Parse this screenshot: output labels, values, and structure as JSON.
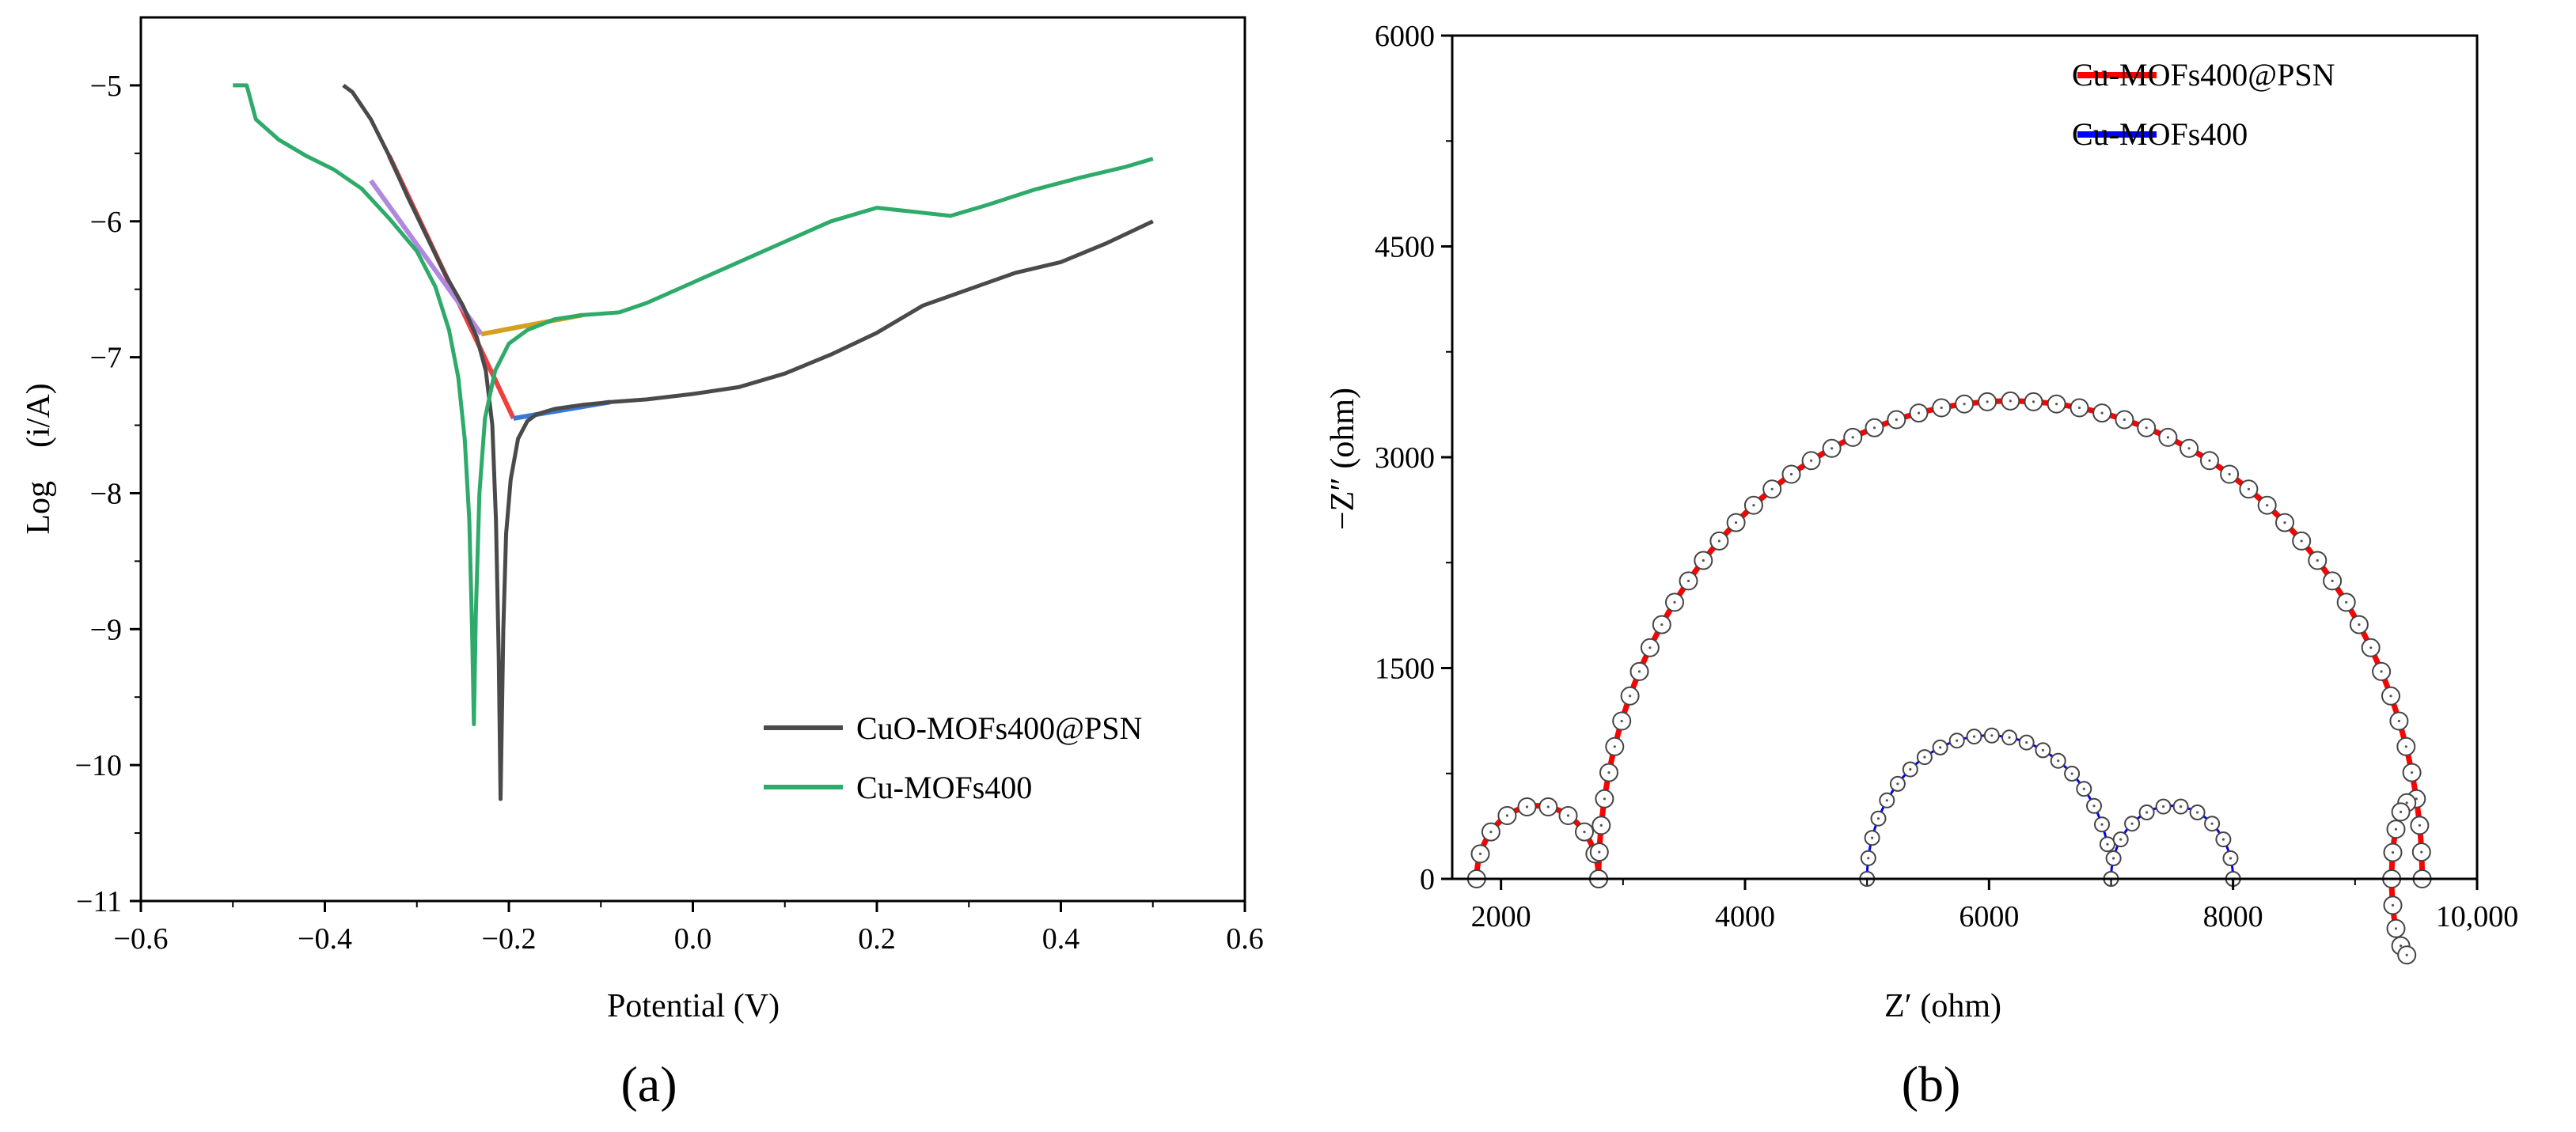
{
  "chart_data": [
    {
      "type": "line",
      "panel_label": "(a)",
      "xlabel": "Potential (V)",
      "ylabel": "Log　(i/A)",
      "xlim": [
        -0.6,
        0.6
      ],
      "ylim": [
        -11,
        -4.5
      ],
      "xticks": [
        -0.6,
        -0.4,
        -0.2,
        0.0,
        0.2,
        0.4,
        0.6
      ],
      "xtick_labels": [
        "−0.6",
        "−0.4",
        "−0.2",
        "0.0",
        "0.2",
        "0.4",
        "0.6"
      ],
      "yticks": [
        -5,
        -6,
        -7,
        -8,
        -9,
        -10,
        -11
      ],
      "ytick_labels": [
        "−5",
        "−6",
        "−7",
        "−8",
        "−9",
        "−10",
        "−11"
      ],
      "legend_position": "bottom-right",
      "series": [
        {
          "name": "CuO-MOFs400@PSN",
          "color": "#4a4a4a",
          "points": [
            [
              -0.38,
              -5.0
            ],
            [
              -0.37,
              -5.05
            ],
            [
              -0.35,
              -5.25
            ],
            [
              -0.33,
              -5.52
            ],
            [
              -0.31,
              -5.82
            ],
            [
              -0.29,
              -6.1
            ],
            [
              -0.27,
              -6.38
            ],
            [
              -0.25,
              -6.62
            ],
            [
              -0.235,
              -6.85
            ],
            [
              -0.225,
              -7.1
            ],
            [
              -0.218,
              -7.5
            ],
            [
              -0.214,
              -8.2
            ],
            [
              -0.211,
              -9.2
            ],
            [
              -0.209,
              -10.25
            ],
            [
              -0.206,
              -9.0
            ],
            [
              -0.203,
              -8.3
            ],
            [
              -0.198,
              -7.9
            ],
            [
              -0.19,
              -7.6
            ],
            [
              -0.18,
              -7.47
            ],
            [
              -0.17,
              -7.42
            ],
            [
              -0.15,
              -7.38
            ],
            [
              -0.12,
              -7.35
            ],
            [
              -0.09,
              -7.33
            ],
            [
              -0.05,
              -7.31
            ],
            [
              0.0,
              -7.27
            ],
            [
              0.05,
              -7.22
            ],
            [
              0.1,
              -7.12
            ],
            [
              0.15,
              -6.98
            ],
            [
              0.2,
              -6.82
            ],
            [
              0.25,
              -6.62
            ],
            [
              0.3,
              -6.5
            ],
            [
              0.35,
              -6.38
            ],
            [
              0.4,
              -6.3
            ],
            [
              0.45,
              -6.16
            ],
            [
              0.5,
              -6.0
            ]
          ]
        },
        {
          "name": "Cu-MOFs400",
          "color": "#2eaa6a",
          "points": [
            [
              -0.5,
              -5.0
            ],
            [
              -0.485,
              -5.0
            ],
            [
              -0.475,
              -5.25
            ],
            [
              -0.45,
              -5.4
            ],
            [
              -0.42,
              -5.52
            ],
            [
              -0.39,
              -5.62
            ],
            [
              -0.36,
              -5.76
            ],
            [
              -0.33,
              -5.98
            ],
            [
              -0.3,
              -6.22
            ],
            [
              -0.28,
              -6.48
            ],
            [
              -0.265,
              -6.8
            ],
            [
              -0.255,
              -7.15
            ],
            [
              -0.248,
              -7.6
            ],
            [
              -0.243,
              -8.2
            ],
            [
              -0.24,
              -9.0
            ],
            [
              -0.238,
              -9.7
            ],
            [
              -0.236,
              -8.9
            ],
            [
              -0.232,
              -8.0
            ],
            [
              -0.226,
              -7.45
            ],
            [
              -0.215,
              -7.1
            ],
            [
              -0.2,
              -6.9
            ],
            [
              -0.18,
              -6.8
            ],
            [
              -0.15,
              -6.72
            ],
            [
              -0.12,
              -6.69
            ],
            [
              -0.08,
              -6.67
            ],
            [
              -0.05,
              -6.6
            ],
            [
              0.0,
              -6.45
            ],
            [
              0.05,
              -6.3
            ],
            [
              0.1,
              -6.15
            ],
            [
              0.15,
              -6.0
            ],
            [
              0.2,
              -5.9
            ],
            [
              0.24,
              -5.93
            ],
            [
              0.28,
              -5.96
            ],
            [
              0.32,
              -5.88
            ],
            [
              0.37,
              -5.77
            ],
            [
              0.42,
              -5.68
            ],
            [
              0.47,
              -5.6
            ],
            [
              0.5,
              -5.54
            ]
          ]
        }
      ],
      "tafel_fits": [
        {
          "color": "#ee4040",
          "points": [
            [
              -0.33,
              -5.52
            ],
            [
              -0.195,
              -7.45
            ]
          ]
        },
        {
          "color": "#3a78d8",
          "points": [
            [
              -0.195,
              -7.45
            ],
            [
              -0.09,
              -7.33
            ]
          ]
        },
        {
          "color": "#b088e0",
          "points": [
            [
              -0.35,
              -5.7
            ],
            [
              -0.23,
              -6.83
            ]
          ]
        },
        {
          "color": "#d4a020",
          "points": [
            [
              -0.23,
              -6.83
            ],
            [
              -0.12,
              -6.69
            ]
          ]
        }
      ]
    },
    {
      "type": "scatter",
      "panel_label": "(b)",
      "xlabel": "Z′ (ohm)",
      "ylabel": "−Z″ (ohm)",
      "xlim": [
        1600,
        10000
      ],
      "ylim": [
        0,
        6000
      ],
      "xticks": [
        2000,
        4000,
        6000,
        8000,
        10000
      ],
      "xtick_labels": [
        "2000",
        "4000",
        "6000",
        "8000",
        "10,000"
      ],
      "yticks": [
        0,
        1500,
        3000,
        4500,
        6000
      ],
      "ytick_labels": [
        "0",
        "1500",
        "3000",
        "4500",
        "6000"
      ],
      "legend_position": "top-right",
      "series": [
        {
          "name": "Cu-MOFs400@PSN",
          "color": "#ff0000",
          "arcs": [
            {
              "center_x": 2300,
              "radius_x": 500,
              "peak": 520,
              "angle_from": 0,
              "angle_to": 180
            },
            {
              "center_x": 6175,
              "radius_x": 3375,
              "peak": 3400,
              "angle_from": 0,
              "angle_to": 180
            },
            {
              "center_x": 9450,
              "radius_x": 150,
              "peak": 550,
              "angle_from": 100,
              "angle_to": 260
            }
          ]
        },
        {
          "name": "Cu-MOFs400",
          "color": "#0000ff",
          "arcs": [
            {
              "center_x": 6000,
              "radius_x": 1000,
              "peak": 1020,
              "angle_from": 14,
              "angle_to": 180
            },
            {
              "center_x": 7500,
              "radius_x": 500,
              "peak": 520,
              "angle_from": 0,
              "angle_to": 180
            }
          ]
        }
      ]
    }
  ]
}
